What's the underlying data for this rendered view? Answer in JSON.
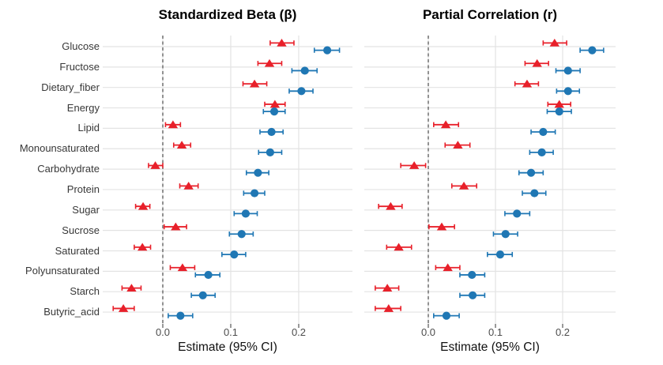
{
  "figure": {
    "background": "#ffffff"
  },
  "colors": {
    "red_series": "#e8202a",
    "blue_series": "#1f77b4",
    "gridline": "#e3e3e3",
    "zero_line": "#5a5a5a",
    "tick_mark": "#333333"
  },
  "chart_data": [
    {
      "type": "scatter",
      "subtype": "forest-dot-ci",
      "title": "Standardized Beta (β)",
      "xlabel": "Estimate (95% CI)",
      "x_ticks": [
        0,
        0.1,
        0.2
      ],
      "x_tick_labels": [
        "0.0",
        "0.1",
        "0.2"
      ],
      "xlim": [
        -0.09,
        0.28
      ],
      "grid": true,
      "legend_position": "none",
      "zero_reference_line": {
        "x": 0,
        "style": "dashed"
      },
      "categories": [
        "Glucose",
        "Fructose",
        "Dietary_fiber",
        "Energy",
        "Lipid",
        "Monounsaturated",
        "Carbohydrate",
        "Protein",
        "Sugar",
        "Sucrose",
        "Saturated",
        "Polyunsaturated",
        "Starch",
        "Butyric_acid"
      ],
      "series": [
        {
          "name": "red-triangle-series",
          "marker": "triangle",
          "color": "#e8202a",
          "values": [
            0.175,
            0.157,
            0.135,
            0.165,
            0.015,
            0.028,
            -0.011,
            0.038,
            -0.029,
            0.019,
            -0.03,
            0.029,
            -0.046,
            -0.058
          ],
          "ci_low": [
            0.158,
            0.14,
            0.118,
            0.15,
            0.004,
            0.016,
            -0.021,
            0.025,
            -0.04,
            0.002,
            -0.042,
            0.011,
            -0.06,
            -0.073
          ],
          "ci_high": [
            0.193,
            0.175,
            0.153,
            0.18,
            0.026,
            0.041,
            0.0,
            0.052,
            -0.019,
            0.035,
            -0.018,
            0.047,
            -0.032,
            -0.042
          ]
        },
        {
          "name": "blue-circle-series",
          "marker": "circle",
          "color": "#1f77b4",
          "values": [
            0.242,
            0.209,
            0.204,
            0.164,
            0.16,
            0.158,
            0.14,
            0.135,
            0.122,
            0.116,
            0.105,
            0.067,
            0.059,
            0.026
          ],
          "ci_low": [
            0.223,
            0.19,
            0.186,
            0.148,
            0.143,
            0.141,
            0.123,
            0.119,
            0.105,
            0.098,
            0.087,
            0.048,
            0.042,
            0.008
          ],
          "ci_high": [
            0.26,
            0.227,
            0.221,
            0.18,
            0.177,
            0.175,
            0.156,
            0.15,
            0.139,
            0.133,
            0.122,
            0.084,
            0.077,
            0.044
          ]
        }
      ]
    },
    {
      "type": "scatter",
      "subtype": "forest-dot-ci",
      "title": "Partial Correlation (r)",
      "xlabel": "Estimate (95% CI)",
      "x_ticks": [
        0,
        0.1,
        0.2
      ],
      "x_tick_labels": [
        "0.0",
        "0.1",
        "0.2"
      ],
      "xlim": [
        -0.1,
        0.28
      ],
      "grid": true,
      "legend_position": "none",
      "zero_reference_line": {
        "x": 0,
        "style": "dashed"
      },
      "categories": [
        "Glucose",
        "Fructose",
        "Dietary_fiber",
        "Energy",
        "Lipid",
        "Monounsaturated",
        "Carbohydrate",
        "Protein",
        "Sugar",
        "Sucrose",
        "Saturated",
        "Polyunsaturated",
        "Starch",
        "Butyric_acid"
      ],
      "series": [
        {
          "name": "red-triangle-series",
          "marker": "triangle",
          "color": "#e8202a",
          "values": [
            0.188,
            0.162,
            0.147,
            0.195,
            0.026,
            0.044,
            -0.021,
            0.053,
            -0.056,
            0.02,
            -0.044,
            0.029,
            -0.061,
            -0.059
          ],
          "ci_low": [
            0.171,
            0.144,
            0.129,
            0.178,
            0.008,
            0.025,
            -0.041,
            0.035,
            -0.074,
            0.001,
            -0.062,
            0.011,
            -0.079,
            -0.079
          ],
          "ci_high": [
            0.206,
            0.179,
            0.164,
            0.212,
            0.045,
            0.062,
            -0.004,
            0.072,
            -0.039,
            0.039,
            -0.025,
            0.047,
            -0.044,
            -0.041
          ]
        },
        {
          "name": "blue-circle-series",
          "marker": "circle",
          "color": "#1f77b4",
          "values": [
            0.244,
            0.208,
            0.208,
            0.195,
            0.171,
            0.169,
            0.153,
            0.158,
            0.132,
            0.115,
            0.107,
            0.065,
            0.066,
            0.027
          ],
          "ci_low": [
            0.226,
            0.19,
            0.191,
            0.177,
            0.153,
            0.151,
            0.135,
            0.14,
            0.114,
            0.097,
            0.088,
            0.047,
            0.047,
            0.008
          ],
          "ci_high": [
            0.261,
            0.226,
            0.225,
            0.213,
            0.189,
            0.186,
            0.171,
            0.175,
            0.151,
            0.133,
            0.125,
            0.084,
            0.084,
            0.046
          ]
        }
      ]
    }
  ]
}
